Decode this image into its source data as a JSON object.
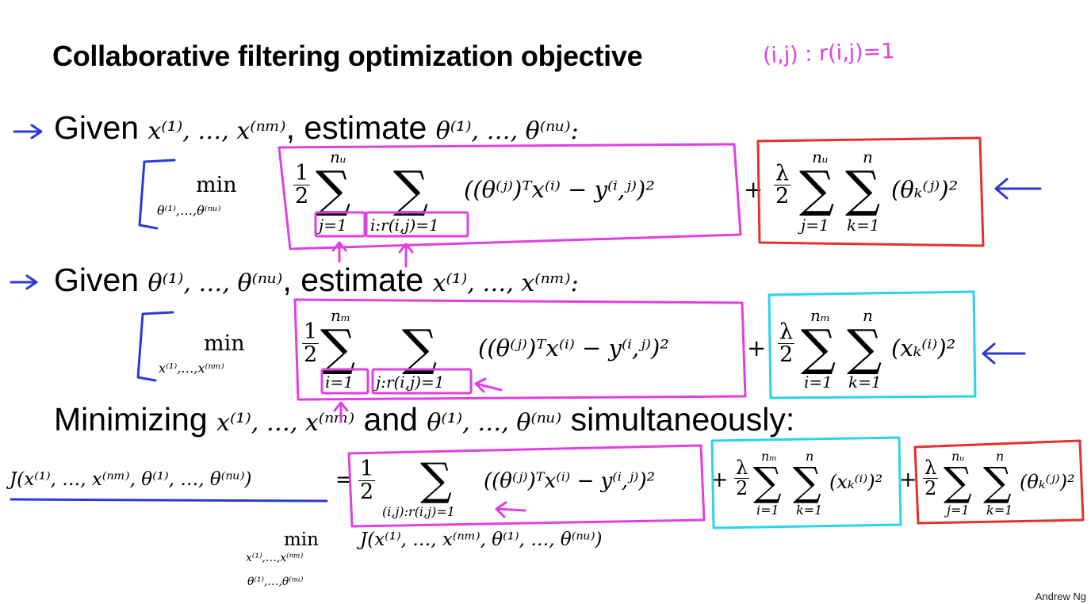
{
  "slide": {
    "title": "Collaborative filtering optimization objective",
    "handwritten_note": "(i,j) : r(i,j)=1",
    "credit": "Andrew Ng"
  },
  "step1": {
    "given_word": "Given",
    "given_vars": "x⁽¹⁾, …, x⁽ⁿᵐ⁾",
    "estimate_word": ", estimate",
    "estimate_vars": "θ⁽¹⁾, …, θ⁽ⁿᵘ⁾:",
    "min_word": "min",
    "min_sub": "θ⁽¹⁾,…,θ⁽ⁿᵘ⁾",
    "half": {
      "num": "1",
      "den": "2"
    },
    "sum1_top": "nᵤ",
    "sum1_bottom": "j=1",
    "sum2_bottom": "i:r(i,j)=1",
    "term": "((θ⁽ʲ⁾)ᵀx⁽ⁱ⁾ − y⁽ⁱ,ʲ⁾)²",
    "plus": "+",
    "lambda_frac": {
      "num": "λ",
      "den": "2"
    },
    "reg_sum1_top": "nᵤ",
    "reg_sum1_bottom": "j=1",
    "reg_sum2_top": "n",
    "reg_sum2_bottom": "k=1",
    "reg_term": "(θₖ⁽ʲ⁾)²"
  },
  "step2": {
    "given_word": "Given",
    "given_vars": "θ⁽¹⁾, …, θ⁽ⁿᵘ⁾",
    "estimate_word": ", estimate",
    "estimate_vars": "x⁽¹⁾, …, x⁽ⁿᵐ⁾:",
    "min_word": "min",
    "min_sub": "x⁽¹⁾,…,x⁽ⁿᵐ⁾",
    "half": {
      "num": "1",
      "den": "2"
    },
    "sum1_top": "nₘ",
    "sum1_bottom": "i=1",
    "sum2_bottom": "j:r(i,j)=1",
    "term": "((θ⁽ʲ⁾)ᵀx⁽ⁱ⁾ − y⁽ⁱ,ʲ⁾)²",
    "plus": "+",
    "lambda_frac": {
      "num": "λ",
      "den": "2"
    },
    "reg_sum1_top": "nₘ",
    "reg_sum1_bottom": "i=1",
    "reg_sum2_top": "n",
    "reg_sum2_bottom": "k=1",
    "reg_term": "(xₖ⁽ⁱ⁾)²"
  },
  "step3": {
    "minimizing_word": "Minimizing",
    "vars_x": "x⁽¹⁾, …, x⁽ⁿᵐ⁾",
    "and_word": "and",
    "vars_theta": "θ⁽¹⁾, …, θ⁽ⁿᵘ⁾",
    "simultaneously_word": "simultaneously:",
    "J_lhs": "J(x⁽¹⁾, …, x⁽ⁿᵐ⁾, θ⁽¹⁾, …, θ⁽ⁿᵘ⁾)",
    "equals": "=",
    "half": {
      "num": "1",
      "den": "2"
    },
    "sum_bottom": "(i,j):r(i,j)=1",
    "term": "((θ⁽ʲ⁾)ᵀx⁽ⁱ⁾ − y⁽ⁱ,ʲ⁾)²",
    "plus1": "+",
    "lambda_frac1": {
      "num": "λ",
      "den": "2"
    },
    "regx_sum1_top": "nₘ",
    "regx_sum1_bottom": "i=1",
    "regx_sum2_top": "n",
    "regx_sum2_bottom": "k=1",
    "regx_term": "(xₖ⁽ⁱ⁾)²",
    "plus2": "+",
    "lambda_frac2": {
      "num": "λ",
      "den": "2"
    },
    "regt_sum1_top": "nᵤ",
    "regt_sum1_bottom": "j=1",
    "regt_sum2_top": "n",
    "regt_sum2_bottom": "k=1",
    "regt_term": "(θₖ⁽ʲ⁾)²",
    "min_word": "min",
    "min_sub_line1": "x⁽¹⁾,…,x⁽ⁿᵐ⁾",
    "min_sub_line2": "θ⁽¹⁾,…,θ⁽ⁿᵘ⁾",
    "min_expr": "J(x⁽¹⁾, …, x⁽ⁿᵐ⁾, θ⁽¹⁾, …, θ⁽ⁿᵘ⁾)"
  },
  "colors": {
    "magenta": "#e040e0",
    "red": "#e53030",
    "cyan": "#2ad4e8",
    "blue": "#2a3ad8"
  }
}
